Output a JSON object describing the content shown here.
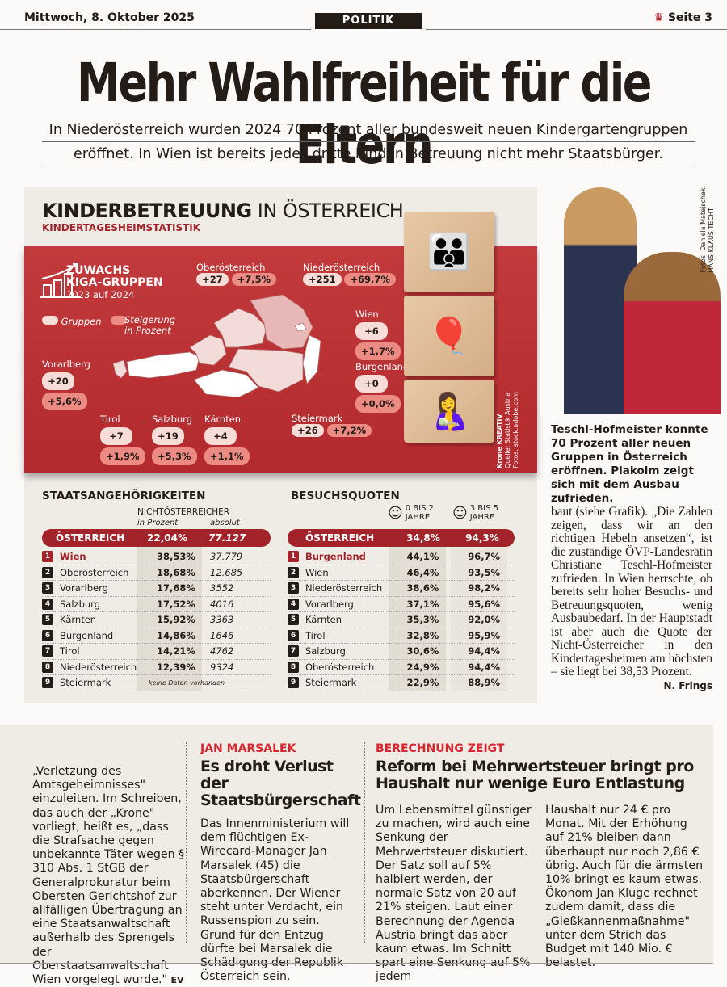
{
  "header": {
    "date": "Mittwoch, 8. Oktober 2025",
    "section": "POLITIK",
    "page": "Seite 3",
    "brand_icon": "crown-icon"
  },
  "article": {
    "title": "Mehr Wahlfreiheit für die Eltern",
    "subtitle_1": "In Niederösterreich wurden 2024 70 Prozent aller bundesweit neuen Kindergartengruppen",
    "subtitle_2": "eröffnet. In Wien ist bereits jedes dritte Kind in Betreuung nicht mehr Staatsbürger.",
    "photo_credit_1": "Fotos: Daniela Matejschek,",
    "photo_credit_2": "HANS KLAUS TECHT",
    "caption": "Teschl-Hofmeister konnte 70 Prozent aller neuen Gruppen in Österreich eröffnen. Plakolm zeigt sich mit dem Ausbau zufrieden.",
    "body": "baut (siehe Grafik). „Die Zahlen zeigen, dass wir an den richtigen Hebeln ansetzen“, ist die zuständige ÖVP-Landesrätin Christiane Teschl-Hofmeister zufrieden. In Wien herrschte, ob bereits sehr hoher Besuchs- und Betreuungsquoten, wenig Ausbaubedarf. In der Hauptstadt ist aber auch die Quote der Nicht-Österreicher in den Kindertagesheimen am höchsten – sie liegt bei 38,53 Prozent.",
    "author": "N. Frings"
  },
  "infographic": {
    "title_bold": "KINDERBETREUUNG",
    "title_light": " IN ÖSTERREICH",
    "subtitle": "KINDERTAGESHEIMSTATISTIK",
    "growth_title_1": "ZUWACHS",
    "growth_title_2": "KIGA-GRUPPEN",
    "growth_period": "2023 auf 2024",
    "legend_groups": "Gruppen",
    "legend_increase_1": "Steigerung",
    "legend_increase_2": "in Prozent",
    "credit_1": "Krone KREATIV",
    "credit_2": "Quelle: Statistik Austria",
    "credit_3": "Fotos: stock.adobe.com",
    "regions": {
      "ooe": {
        "name": "Oberösterreich",
        "groups": "+27",
        "pct": "+7,5%"
      },
      "noe": {
        "name": "Niederösterreich",
        "groups": "+251",
        "pct": "+69,7%"
      },
      "wien": {
        "name": "Wien",
        "groups": "+6",
        "pct": "+1,7%"
      },
      "bgld": {
        "name": "Burgenland",
        "groups": "+0",
        "pct": "+0,0%"
      },
      "vbg": {
        "name": "Vorarlberg",
        "groups": "+20",
        "pct": "+5,6%"
      },
      "tirol": {
        "name": "Tirol",
        "groups": "+7",
        "pct": "+1,9%"
      },
      "sbg": {
        "name": "Salzburg",
        "groups": "+19",
        "pct": "+5,3%"
      },
      "ktn": {
        "name": "Kärnten",
        "groups": "+4",
        "pct": "+1,1%"
      },
      "stmk": {
        "name": "Steiermark",
        "groups": "+26",
        "pct": "+7,2%"
      }
    },
    "colors": {
      "red": "#b8282d",
      "pill_groups": "#f7dcd8",
      "pill_pct": "#ec8a84"
    }
  },
  "citizenship": {
    "title": "STAATSANGEHÖRIGKEITEN",
    "col_group": "NICHTÖSTERREICHER",
    "col_pct": "in Prozent",
    "col_abs": "absolut",
    "total": {
      "label": "ÖSTERREICH",
      "pct": "22,04%",
      "abs": "77.127"
    },
    "rows": [
      {
        "rank": "1",
        "name": "Wien",
        "pct": "38,53%",
        "abs": "37.779"
      },
      {
        "rank": "2",
        "name": "Oberösterreich",
        "pct": "18,68%",
        "abs": "12.685"
      },
      {
        "rank": "3",
        "name": "Vorarlberg",
        "pct": "17,68%",
        "abs": "3552"
      },
      {
        "rank": "4",
        "name": "Salzburg",
        "pct": "17,52%",
        "abs": "4016"
      },
      {
        "rank": "5",
        "name": "Kärnten",
        "pct": "15,92%",
        "abs": "3363"
      },
      {
        "rank": "6",
        "name": "Burgenland",
        "pct": "14,86%",
        "abs": "1646"
      },
      {
        "rank": "7",
        "name": "Tirol",
        "pct": "14,21%",
        "abs": "4762"
      },
      {
        "rank": "8",
        "name": "Niederösterreich",
        "pct": "12,39%",
        "abs": "9324"
      },
      {
        "rank": "9",
        "name": "Steiermark",
        "pct": "keine Daten vorhanden",
        "abs": ""
      }
    ]
  },
  "attendance": {
    "title": "BESUCHSQUOTEN",
    "col_a_1": "0 BIS 2",
    "col_a_2": "JAHRE",
    "col_b_1": "3 BIS 5",
    "col_b_2": "JAHRE",
    "total": {
      "label": "ÖSTERREICH",
      "a": "34,8%",
      "b": "94,3%"
    },
    "rows": [
      {
        "rank": "1",
        "name": "Burgenland",
        "a": "44,1%",
        "b": "96,7%"
      },
      {
        "rank": "2",
        "name": "Wien",
        "a": "46,4%",
        "b": "93,5%"
      },
      {
        "rank": "3",
        "name": "Niederösterreich",
        "a": "38,6%",
        "b": "98,2%"
      },
      {
        "rank": "4",
        "name": "Vorarlberg",
        "a": "37,1%",
        "b": "95,6%"
      },
      {
        "rank": "5",
        "name": "Kärnten",
        "a": "35,3%",
        "b": "92,0%"
      },
      {
        "rank": "6",
        "name": "Tirol",
        "a": "32,8%",
        "b": "95,9%"
      },
      {
        "rank": "7",
        "name": "Salzburg",
        "a": "30,6%",
        "b": "94,4%"
      },
      {
        "rank": "8",
        "name": "Oberösterreich",
        "a": "24,9%",
        "b": "94,4%"
      },
      {
        "rank": "9",
        "name": "Steiermark",
        "a": "22,9%",
        "b": "88,9%"
      }
    ]
  },
  "bottom": {
    "col1": "„Verletzung des Amtsgeheimnisses\" einzuleiten. Im Schreiben, das auch der „Krone\" vorliegt, heißt es, „dass die Strafsache gegen unbekannte Täter wegen § 310 Abs. 1 StGB der Generalprokuratur beim Obersten Gerichtshof zur allfälligen Übertragung an eine Staatsanwaltschaft außerhalb des Sprengels der Oberstaatsanwaltschaft Wien vorgelegt wurde.\"",
    "col1_author": "EV",
    "story2": {
      "kicker": "JAN MARSALEK",
      "headline": "Es droht Verlust der Staatsbürgerschaft",
      "text": "Das Innenministerium will dem flüchtigen Ex-Wirecard-Manager Jan Marsalek (45) die Staatsbürgerschaft aberkennen. Der Wiener steht unter Verdacht, ein Russenspion zu sein. Grund für den Entzug dürfte bei Marsalek die Schädigung der Republik Österreich sein."
    },
    "story3": {
      "kicker": "BERECHNUNG ZEIGT",
      "headline": "Reform bei Mehrwertsteuer bringt pro Haushalt nur wenige Euro Entlastung",
      "text_1": "Um Lebensmittel günstiger zu machen, wird auch eine Senkung der Mehrwertsteuer diskutiert. Der Satz soll auf 5% halbiert werden, der normale Satz von 20 auf 21% steigen. Laut einer Berechnung der Agenda Austria bringt das aber kaum etwas. Im Schnitt spart eine Senkung auf 5% jedem",
      "text_2": "Haushalt nur 24 € pro Monat. Mit der Erhöhung auf 21% bleiben dann überhaupt nur noch 2,86 € übrig. Auch für die ärmsten 10% bringt es kaum etwas. Ökonom Jan Kluge rechnet zudem damit, dass die „Gießkannenmaßnahme\" unter dem Strich das Budget mit 140 Mio. € belastet."
    }
  }
}
